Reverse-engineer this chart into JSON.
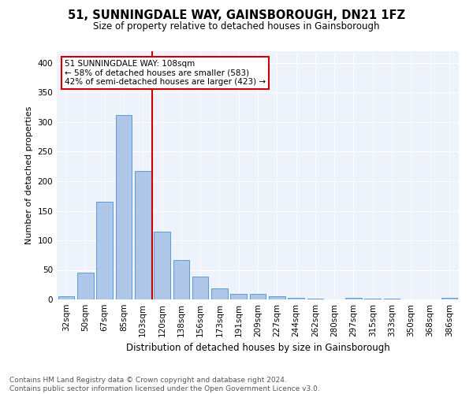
{
  "title": "51, SUNNINGDALE WAY, GAINSBOROUGH, DN21 1FZ",
  "subtitle": "Size of property relative to detached houses in Gainsborough",
  "xlabel": "Distribution of detached houses by size in Gainsborough",
  "ylabel": "Number of detached properties",
  "categories": [
    "32sqm",
    "50sqm",
    "67sqm",
    "85sqm",
    "103sqm",
    "120sqm",
    "138sqm",
    "156sqm",
    "173sqm",
    "191sqm",
    "209sqm",
    "227sqm",
    "244sqm",
    "262sqm",
    "280sqm",
    "297sqm",
    "315sqm",
    "333sqm",
    "350sqm",
    "368sqm",
    "386sqm"
  ],
  "values": [
    5,
    46,
    165,
    312,
    217,
    115,
    67,
    39,
    19,
    10,
    10,
    5,
    3,
    1,
    0,
    3,
    2,
    2,
    0,
    0,
    3
  ],
  "bar_color": "#aec6e8",
  "bar_edgecolor": "#5b9bd5",
  "vline_color": "#cc0000",
  "annotation_title": "51 SUNNINGDALE WAY: 108sqm",
  "annotation_line1": "← 58% of detached houses are smaller (583)",
  "annotation_line2": "42% of semi-detached houses are larger (423) →",
  "annotation_box_color": "#ffffff",
  "annotation_box_edgecolor": "#cc0000",
  "footer_line1": "Contains HM Land Registry data © Crown copyright and database right 2024.",
  "footer_line2": "Contains public sector information licensed under the Open Government Licence v3.0.",
  "bg_color": "#eef2fa",
  "ylim": [
    0,
    420
  ],
  "yticks": [
    0,
    50,
    100,
    150,
    200,
    250,
    300,
    350,
    400
  ],
  "title_fontsize": 10.5,
  "subtitle_fontsize": 8.5,
  "ylabel_fontsize": 8,
  "xlabel_fontsize": 8.5,
  "tick_fontsize": 7.5,
  "annotation_fontsize": 7.5,
  "footer_fontsize": 6.5
}
